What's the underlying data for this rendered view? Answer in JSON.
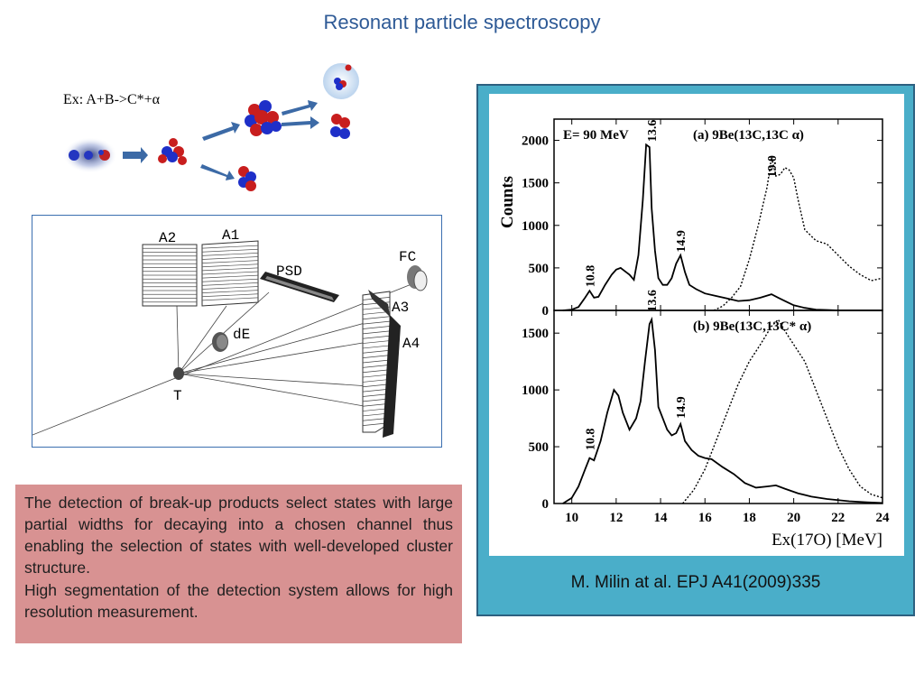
{
  "title": "Resonant particle spectroscopy",
  "example": {
    "prefix": "Ex: ",
    "reaction": "A+B->C*+α"
  },
  "setup": {
    "labels": {
      "a2": "A2",
      "a1": "A1",
      "psd": "PSD",
      "fc": "FC",
      "de": "dE",
      "t": "T",
      "a3": "A3",
      "a4": "A4"
    }
  },
  "notes": [
    "The detection of break-up products select states with large partial widths for decaying into a chosen channel thus enabling  the selection of states with well-developed cluster structure.",
    "High segmentation of the detection system allows for high resolution measurement."
  ],
  "citation": "M. Milin at al. EPJ A41(2009)335",
  "colors": {
    "title": "#2e5a96",
    "panel": "#4aaec9",
    "note_background": "#d89292",
    "arrow": "#3c6aa6",
    "nucleon_red": "#c81e1e",
    "nucleon_blue": "#1e2fc8"
  },
  "chart_data": [
    {
      "type": "line",
      "panel_label": "(a)",
      "energy_label": "E= 90 MeV",
      "reaction_label": "9Be(13C,13C α)",
      "xlabel": "Ex(17O) [MeV]",
      "ylabel": "Counts",
      "xlim": [
        9.2,
        24
      ],
      "ylim": [
        0,
        2250
      ],
      "xticks": [
        10,
        12,
        14,
        16,
        18,
        20,
        22,
        24
      ],
      "yticks": [
        0,
        500,
        1000,
        1500,
        2000
      ],
      "peak_labels": [
        {
          "text": "10.8",
          "x": 10.8,
          "y": 210
        },
        {
          "text": "13.6",
          "x": 13.6,
          "y": 1920
        },
        {
          "text": "14.9",
          "x": 14.9,
          "y": 620
        },
        {
          "text": "19.0",
          "x": 19.0,
          "y": 1500
        }
      ],
      "series": [
        {
          "style": "solid",
          "x": [
            9.6,
            10.0,
            10.3,
            10.6,
            10.8,
            11.0,
            11.2,
            11.5,
            11.8,
            12.0,
            12.2,
            12.4,
            12.6,
            12.8,
            13.0,
            13.2,
            13.35,
            13.5,
            13.6,
            13.75,
            13.9,
            14.1,
            14.3,
            14.5,
            14.7,
            14.9,
            15.1,
            15.3,
            15.6,
            16.0,
            16.5,
            17.0,
            17.5,
            18.0,
            18.5,
            19.0,
            19.3,
            19.6,
            20.0,
            20.5,
            21.0,
            21.5,
            22.0,
            23.0,
            24.0
          ],
          "y": [
            0,
            10,
            40,
            150,
            230,
            150,
            160,
            300,
            420,
            480,
            500,
            460,
            420,
            360,
            650,
            1300,
            1950,
            1920,
            1200,
            700,
            380,
            300,
            300,
            380,
            550,
            650,
            450,
            300,
            250,
            200,
            170,
            140,
            110,
            120,
            150,
            190,
            150,
            110,
            60,
            30,
            10,
            5,
            0,
            0,
            0
          ]
        },
        {
          "style": "dotted",
          "x": [
            16.4,
            16.8,
            17.2,
            17.6,
            18.0,
            18.4,
            18.8,
            19.0,
            19.2,
            19.4,
            19.6,
            19.8,
            20.0,
            20.2,
            20.5,
            21.0,
            21.5,
            22.0,
            22.5,
            23.0,
            23.5,
            24.0
          ],
          "y": [
            0,
            50,
            150,
            280,
            600,
            1000,
            1450,
            1800,
            1580,
            1600,
            1680,
            1650,
            1560,
            1300,
            950,
            820,
            780,
            650,
            520,
            420,
            350,
            380
          ]
        }
      ]
    },
    {
      "type": "line",
      "panel_label": "(b)",
      "reaction_label": "9Be(13C,13C* α)",
      "xlabel": "Ex(17O) [MeV]",
      "ylabel": "Counts",
      "xlim": [
        9.2,
        24
      ],
      "ylim": [
        0,
        1700
      ],
      "xticks": [
        10,
        12,
        14,
        16,
        18,
        20,
        22,
        24
      ],
      "yticks": [
        0,
        500,
        1000,
        1500
      ],
      "peak_labels": [
        {
          "text": "10.8",
          "x": 10.8,
          "y": 420
        },
        {
          "text": "13.6",
          "x": 13.6,
          "y": 1640
        },
        {
          "text": "14.9",
          "x": 14.9,
          "y": 700
        }
      ],
      "series": [
        {
          "style": "solid",
          "x": [
            9.6,
            10.0,
            10.3,
            10.6,
            10.8,
            11.0,
            11.3,
            11.6,
            11.9,
            12.1,
            12.3,
            12.6,
            12.9,
            13.1,
            13.3,
            13.5,
            13.6,
            13.75,
            13.9,
            14.1,
            14.3,
            14.5,
            14.7,
            14.9,
            15.1,
            15.4,
            15.7,
            16.0,
            16.3,
            16.8,
            17.3,
            17.8,
            18.3,
            18.8,
            19.2,
            19.6,
            20.2,
            20.8,
            21.5,
            22.5,
            23.3,
            24.0
          ],
          "y": [
            0,
            50,
            150,
            300,
            400,
            380,
            550,
            800,
            1000,
            950,
            800,
            650,
            750,
            900,
            1250,
            1580,
            1620,
            1350,
            850,
            750,
            650,
            600,
            620,
            700,
            550,
            470,
            420,
            400,
            390,
            320,
            260,
            180,
            140,
            150,
            160,
            130,
            90,
            60,
            40,
            20,
            10,
            5
          ]
        },
        {
          "style": "dotted",
          "x": [
            15.0,
            15.5,
            16.0,
            16.5,
            17.0,
            17.5,
            18.0,
            18.5,
            19.0,
            19.3,
            19.6,
            20.0,
            20.5,
            21.0,
            21.5,
            22.0,
            22.5,
            23.0,
            23.5,
            24.0
          ],
          "y": [
            0,
            120,
            300,
            550,
            800,
            1050,
            1250,
            1400,
            1560,
            1620,
            1520,
            1400,
            1250,
            1000,
            750,
            500,
            300,
            150,
            80,
            50
          ]
        }
      ]
    }
  ]
}
